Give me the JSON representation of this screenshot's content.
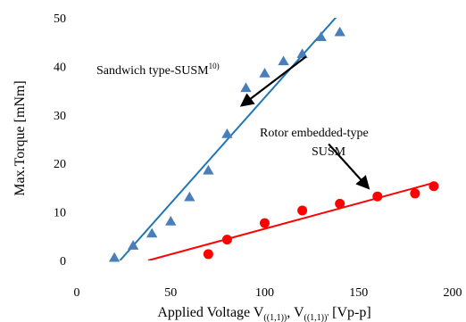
{
  "chart_data": {
    "type": "scatter",
    "xlabel": {
      "main": "Applied Voltage V",
      "sub1": "((1,1))",
      "sep": ", V",
      "sub2": "((1,1))'",
      "unit": " [Vp-p]"
    },
    "ylabel": "Max.Torque [mNm]",
    "xlim": [
      0,
      200
    ],
    "ylim": [
      0,
      50
    ],
    "x_ticks": [
      "0",
      "50",
      "100",
      "150",
      "200"
    ],
    "y_ticks": [
      "0",
      "10",
      "20",
      "30",
      "40",
      "50"
    ],
    "grid": "none",
    "series": [
      {
        "name": "Sandwich type-SUSM",
        "name_sup": "10)",
        "marker": "triangle",
        "color": "#4a7ebb",
        "x": [
          20,
          30,
          40,
          50,
          60,
          70,
          80,
          90,
          100,
          110,
          120,
          130,
          140
        ],
        "y": [
          0.5,
          3,
          5.5,
          8,
          13,
          18.5,
          26,
          35.5,
          38.5,
          41,
          42.5,
          46,
          47
        ],
        "fit_line": {
          "color": "#1f77b4",
          "x": [
            23,
            140
          ],
          "y": [
            0,
            51
          ]
        }
      },
      {
        "name": "Rotor embedded-type SUSM",
        "name_lines": [
          "Rotor embedded-type",
          "SUSM"
        ],
        "marker": "circle",
        "color": "#ff0000",
        "x": [
          70,
          80,
          100,
          120,
          140,
          160,
          180,
          190
        ],
        "y": [
          1.3,
          4.3,
          7.7,
          10.3,
          11.7,
          13.2,
          13.8,
          15.3
        ],
        "fit_line": {
          "color": "#ff0000",
          "x": [
            38,
            190
          ],
          "y": [
            0,
            16
          ]
        }
      }
    ],
    "annotations": [
      {
        "target_series": 0,
        "arrow_from": [
          122,
          42
        ],
        "arrow_to": [
          88,
          32
        ]
      },
      {
        "target_series": 1,
        "arrow_from": [
          134,
          24
        ],
        "arrow_to": [
          155,
          15
        ]
      }
    ]
  }
}
